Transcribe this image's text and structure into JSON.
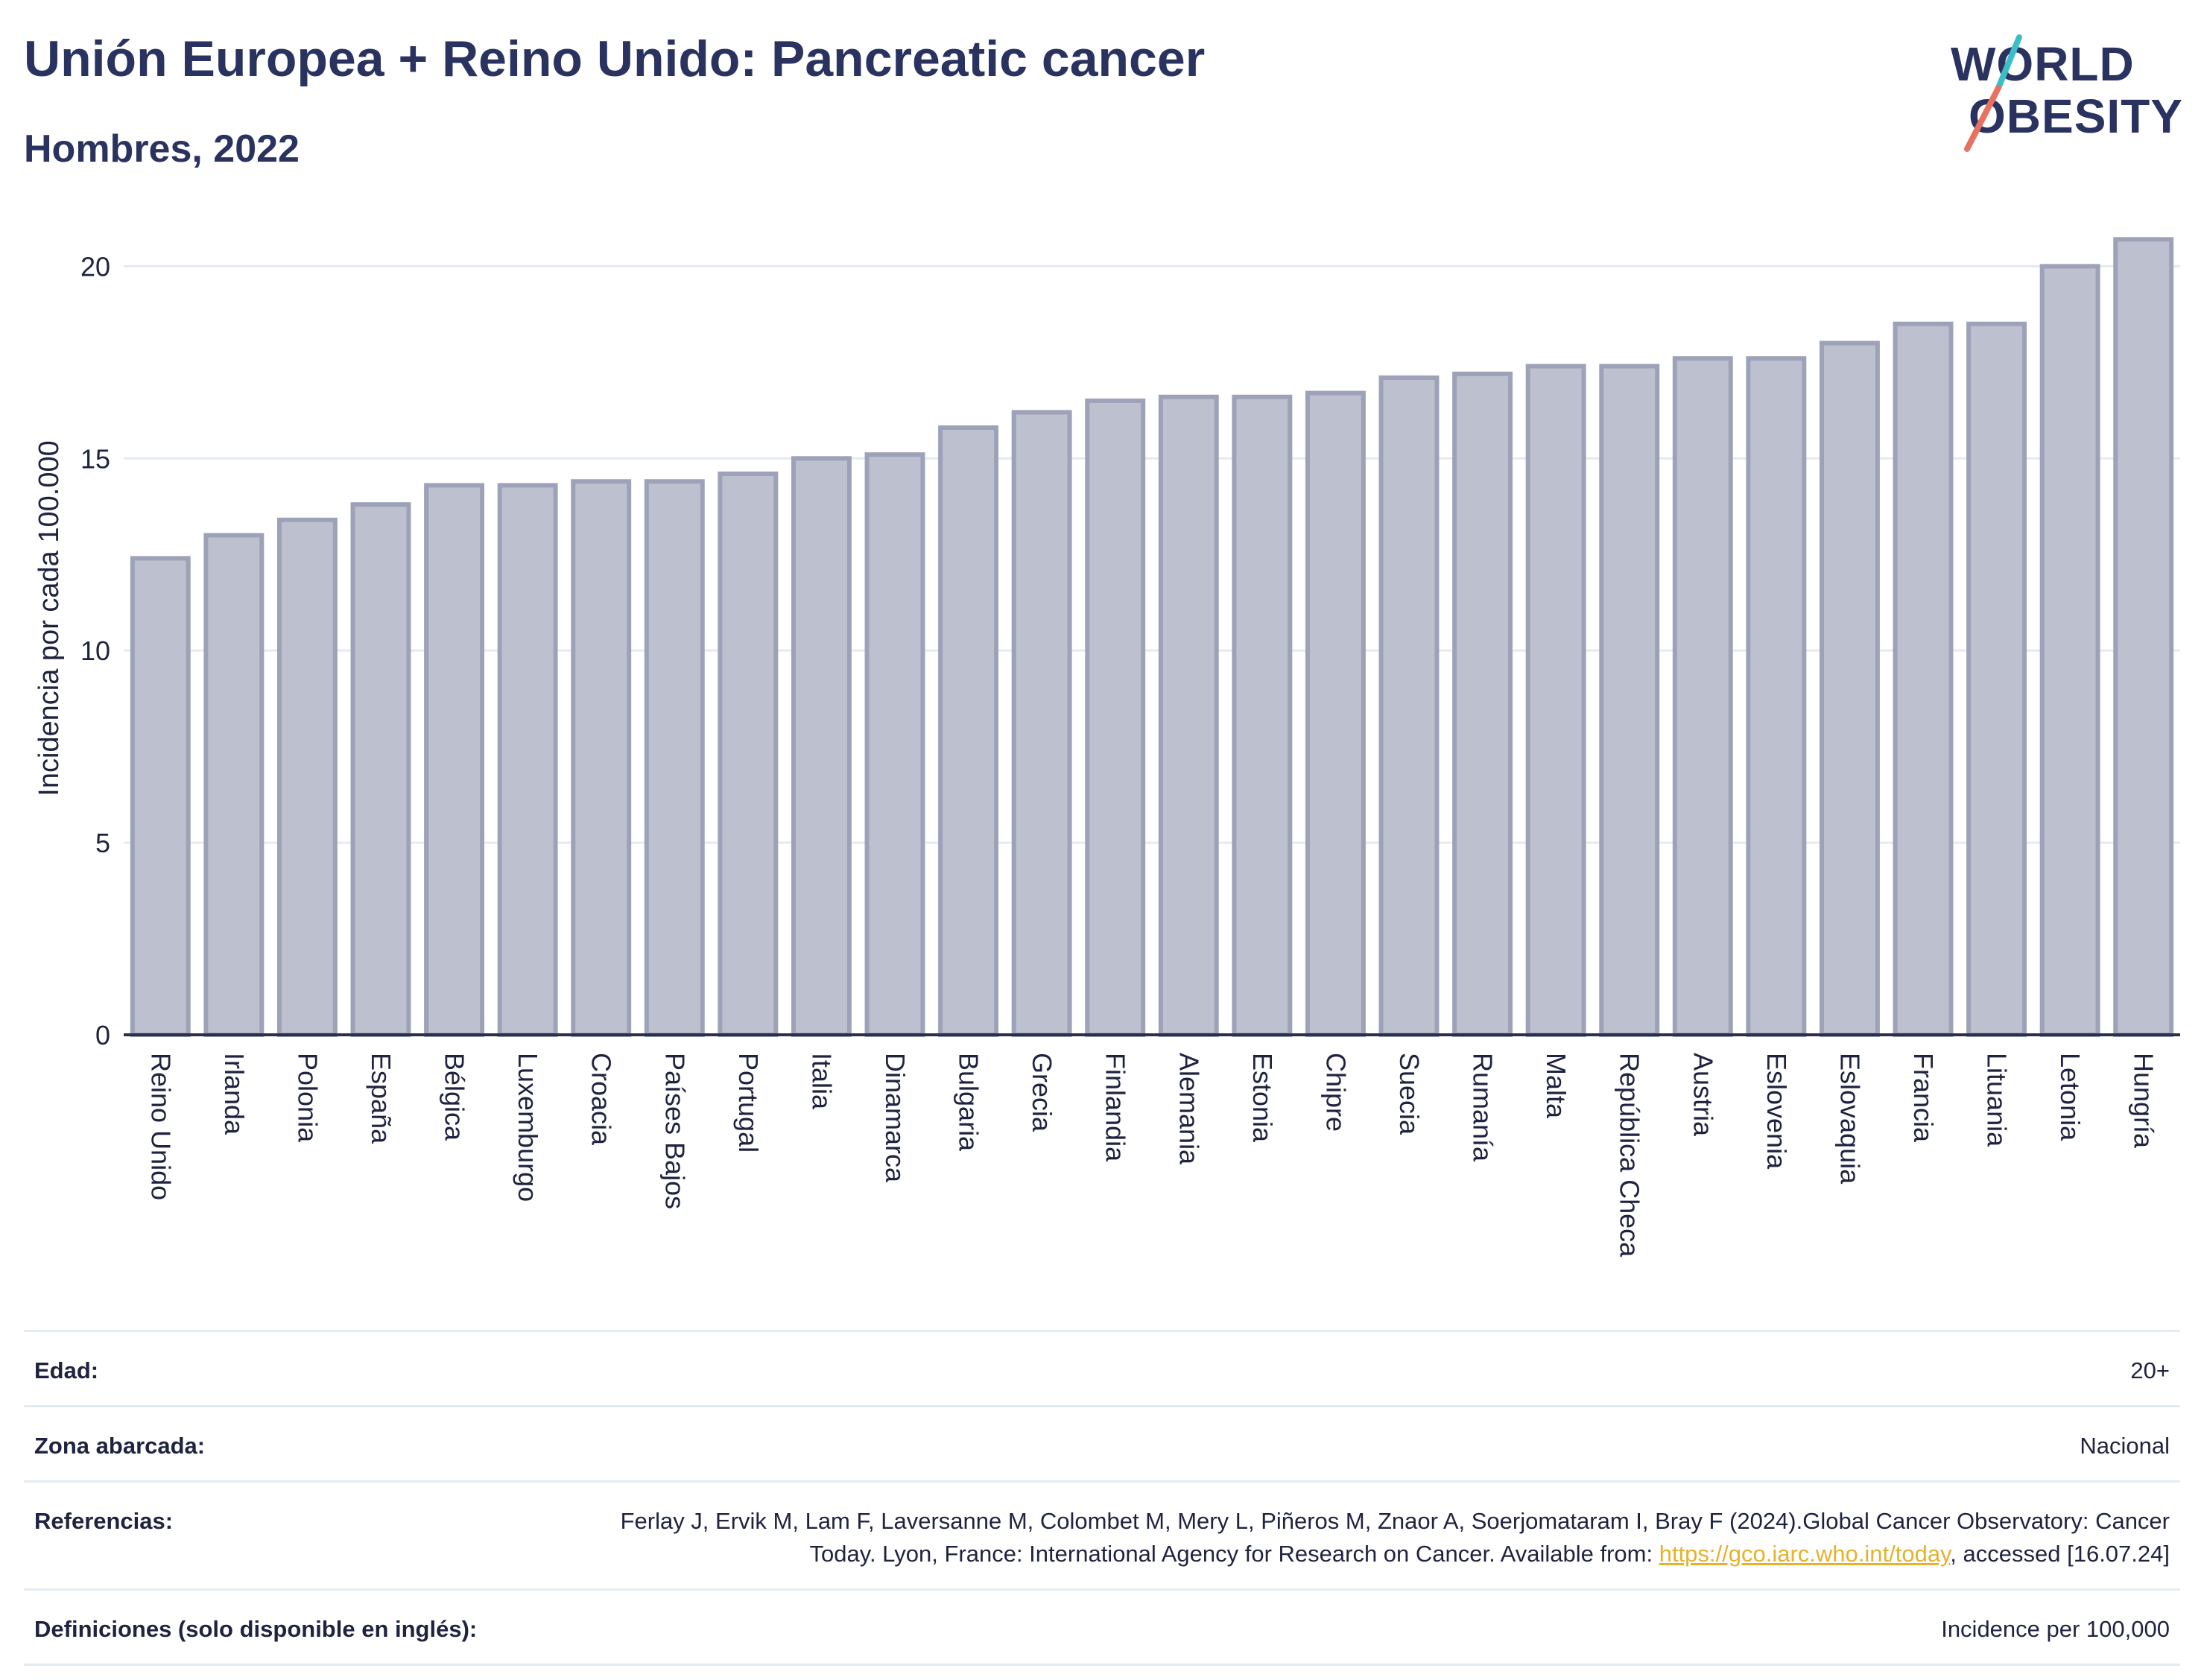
{
  "header": {
    "title": "Unión Europea + Reino Unido: Pancreatic cancer",
    "subtitle": "Hombres, 2022",
    "logo_line1": "WORLD",
    "logo_line2": "OBESITY"
  },
  "chart_data": {
    "type": "bar",
    "ylabel": "Incidencia por cada 100.000",
    "ylim": [
      0,
      21.5
    ],
    "yticks": [
      0,
      5,
      10,
      15,
      20
    ],
    "grid": true,
    "categories": [
      "Reino Unido",
      "Irlanda",
      "Polonia",
      "España",
      "Bélgica",
      "Luxemburgo",
      "Croacia",
      "Países Bajos",
      "Portugal",
      "Italia",
      "Dinamarca",
      "Bulgaria",
      "Grecia",
      "Finlandia",
      "Alemania",
      "Estonia",
      "Chipre",
      "Suecia",
      "Rumanía",
      "Malta",
      "República Checa",
      "Austria",
      "Eslovenia",
      "Eslovaquia",
      "Francia",
      "Lituania",
      "Letonia",
      "Hungría"
    ],
    "values": [
      12.4,
      13.0,
      13.4,
      13.8,
      14.3,
      14.3,
      14.4,
      14.4,
      14.6,
      15.0,
      15.1,
      15.8,
      16.2,
      16.5,
      16.6,
      16.6,
      16.7,
      17.1,
      17.2,
      17.4,
      17.4,
      17.6,
      17.6,
      18.0,
      18.5,
      18.5,
      20.0,
      20.7
    ],
    "colors": {
      "bar_fill": "#bdc0ce",
      "bar_stroke": "#9ea2b9",
      "axis": "#2a2f4a",
      "grid": "#e4eaf0"
    }
  },
  "info": {
    "edad_label": "Edad:",
    "edad_value": "20+",
    "zona_label": "Zona abarcada:",
    "zona_value": "Nacional",
    "ref_label": "Referencias:",
    "ref_text1": "Ferlay J, Ervik M, Lam F, Laversanne M, Colombet M, Mery L, Piñeros M, Znaor A, Soerjomataram I, Bray F (2024).Global Cancer Observatory: Cancer Today. Lyon, France: International Agency for Research on Cancer. Available from: ",
    "ref_link": "https://gco.iarc.who.int/today",
    "ref_text2": ", accessed [16.07.24]",
    "def_label": "Definiciones (solo disponible en inglés):",
    "def_value": "Incidence per 100,000"
  }
}
